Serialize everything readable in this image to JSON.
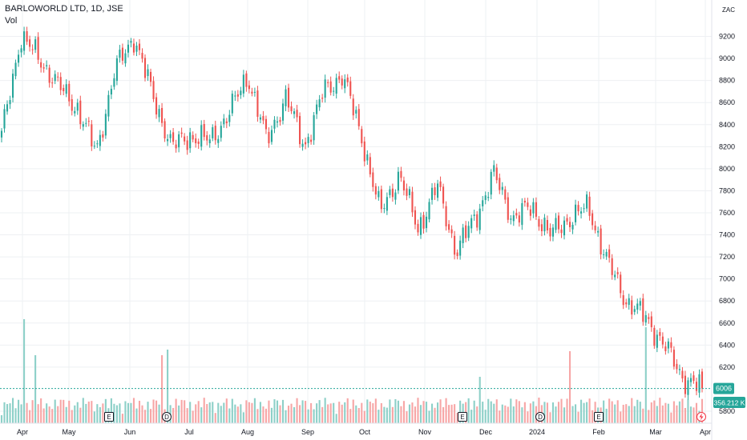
{
  "header": {
    "symbol": "BARLOWORLD LTD, 1D, JSE",
    "volume_label": "Vol",
    "currency": "ZAC"
  },
  "colors": {
    "up": "#26a69a",
    "down": "#ef5350",
    "up_vol": "#8dd0c8",
    "down_vol": "#f7a6a6",
    "grid": "#eef0f3",
    "price_line": "#26a69a"
  },
  "badges": {
    "price": "6006",
    "volume": "356.212 K"
  },
  "markers": [
    {
      "label": "E",
      "type": "earnings",
      "month": "Jun"
    },
    {
      "label": "D",
      "type": "dividend",
      "month": "Jun"
    },
    {
      "label": "E",
      "type": "earnings",
      "month": "Nov"
    },
    {
      "label": "D",
      "type": "dividend",
      "month": "Dec"
    },
    {
      "label": "E",
      "type": "earnings",
      "month": "Feb"
    }
  ],
  "flash_icon": "lightning-icon",
  "chart_data": {
    "type": "candlestick",
    "title": "BARLOWORLD LTD, 1D, JSE",
    "x_ticks": [
      "Apr",
      "May",
      "Jun",
      "Jul",
      "Aug",
      "Sep",
      "Oct",
      "Nov",
      "Dec",
      "2024",
      "Feb",
      "Mar",
      "Apr"
    ],
    "y_ticks": [
      9200,
      9000,
      8800,
      8600,
      8400,
      8200,
      8000,
      7800,
      7600,
      7400,
      7200,
      7000,
      6800,
      6600,
      6400,
      6200,
      5800
    ],
    "ylim": [
      5800,
      9400
    ],
    "last_price": 6006,
    "last_volume": "356.212 K",
    "anchors": [
      {
        "date": "Mar 27",
        "close": 8300
      },
      {
        "date": "Apr 10",
        "close": 9200
      },
      {
        "date": "Apr 24",
        "close": 9000
      },
      {
        "date": "May 8",
        "close": 8750
      },
      {
        "date": "May 22",
        "close": 8550
      },
      {
        "date": "Jun 5",
        "close": 8150
      },
      {
        "date": "Jun 12",
        "close": 8900
      },
      {
        "date": "Jun 21",
        "close": 9200
      },
      {
        "date": "Jun 27",
        "close": 8650
      },
      {
        "date": "Jul 5",
        "close": 8200
      },
      {
        "date": "Jul 21",
        "close": 8300
      },
      {
        "date": "Aug 4",
        "close": 8250
      },
      {
        "date": "Aug 14",
        "close": 8500
      },
      {
        "date": "Aug 20",
        "close": 8850
      },
      {
        "date": "Aug 31",
        "close": 8250
      },
      {
        "date": "Sep 14",
        "close": 8650
      },
      {
        "date": "Sep 28",
        "close": 8200
      },
      {
        "date": "Oct 10",
        "close": 8700
      },
      {
        "date": "Oct 16",
        "close": 8850
      },
      {
        "date": "Oct 26",
        "close": 8300
      },
      {
        "date": "Nov 3",
        "close": 7600
      },
      {
        "date": "Nov 10",
        "close": 7950
      },
      {
        "date": "Nov 20",
        "close": 7450
      },
      {
        "date": "Dec 1",
        "close": 7850
      },
      {
        "date": "Dec 12",
        "close": 7250
      },
      {
        "date": "Dec 22",
        "close": 7550
      },
      {
        "date": "Jan 5",
        "close": 7950
      },
      {
        "date": "Jan 12",
        "close": 7550
      },
      {
        "date": "Jan 22",
        "close": 7650
      },
      {
        "date": "Feb 1",
        "close": 7400
      },
      {
        "date": "Feb 9",
        "close": 7550
      },
      {
        "date": "Feb 20",
        "close": 7650
      },
      {
        "date": "Feb 28",
        "close": 7150
      },
      {
        "date": "Mar 7",
        "close": 6800
      },
      {
        "date": "Mar 13",
        "close": 6650
      },
      {
        "date": "Mar 20",
        "close": 6400
      },
      {
        "date": "Mar 27",
        "close": 6100
      },
      {
        "date": "Mar 28",
        "close": 6006
      }
    ],
    "legend": "none",
    "grid": true
  }
}
